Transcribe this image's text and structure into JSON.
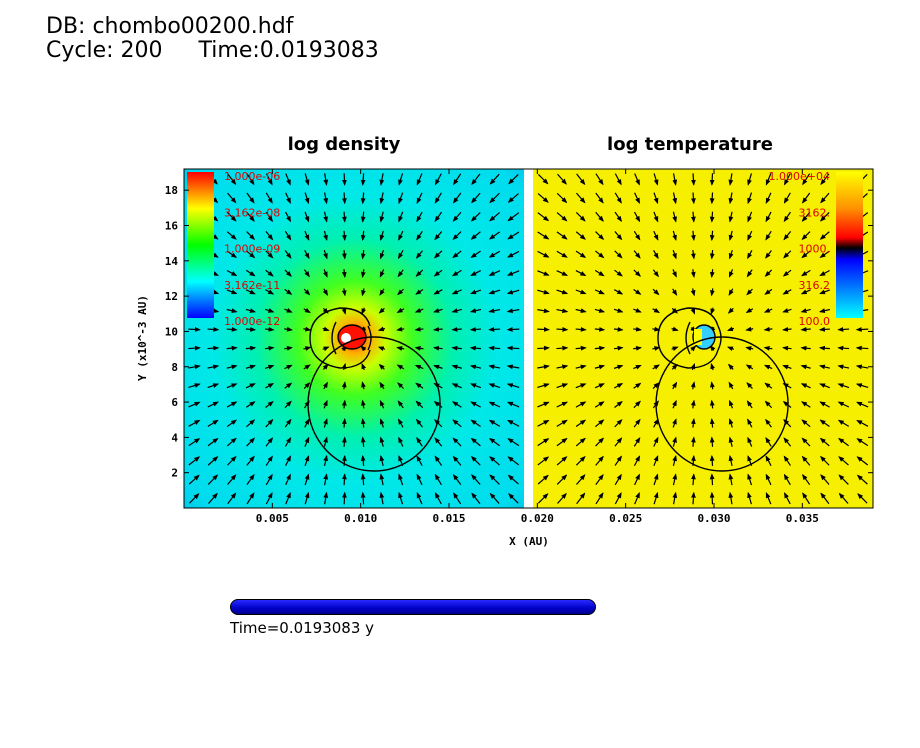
{
  "header": {
    "db": "DB: chombo00200.hdf",
    "cycle": "Cycle: 200",
    "time": "Time:0.0193083"
  },
  "time_slider": {
    "label": "Time=0.0193083 y",
    "fraction": 1.0,
    "color": "#0000c8"
  },
  "chart_data": [
    {
      "type": "heatmap",
      "title": "log density",
      "xlabel": "X (AU)",
      "ylabel": "Y (x10^-3 AU)",
      "xlim": [
        0,
        0.0195
      ],
      "ylim": [
        0,
        19.2
      ],
      "x_ticks": [
        "0.005",
        "0.010",
        "0.015"
      ],
      "x_tick_values": [
        0.005,
        0.01,
        0.015
      ],
      "y_ticks": [
        "2",
        "4",
        "6",
        "8",
        "10",
        "12",
        "14",
        "16",
        "18"
      ],
      "y_tick_values": [
        2,
        4,
        6,
        8,
        10,
        12,
        14,
        16,
        18
      ],
      "colorbar": {
        "labels": [
          "1.000e-06",
          "3.162e-08",
          "1.000e-09",
          "3.162e-11",
          "1.000e-12"
        ],
        "colors": [
          "#ff0000",
          "#ffff00",
          "#00ff00",
          "#00ffff",
          "#0000ff"
        ],
        "placement": "top-left"
      },
      "background_color": "#00e8e8",
      "features": [
        "velocity vector field",
        "contour lines",
        "central high-density core"
      ]
    },
    {
      "type": "heatmap",
      "title": "log temperature",
      "xlabel": "X (AU)",
      "xlim": [
        0.0195,
        0.039
      ],
      "ylim": [
        0,
        19.2
      ],
      "x_ticks": [
        "0.020",
        "0.025",
        "0.030",
        "0.035"
      ],
      "x_tick_values": [
        0.02,
        0.025,
        0.03,
        0.035
      ],
      "colorbar": {
        "labels": [
          "1.000e+04",
          "3162.",
          "1000.",
          "316.2",
          "100.0"
        ],
        "colors": [
          "#ff0000",
          "#ffff00",
          "#ff0000",
          "#0000ff",
          "#00ffff"
        ],
        "placement": "top-right"
      },
      "background_color": "#f6f000",
      "features": [
        "velocity vector field",
        "contour lines",
        "central cool core"
      ]
    }
  ]
}
